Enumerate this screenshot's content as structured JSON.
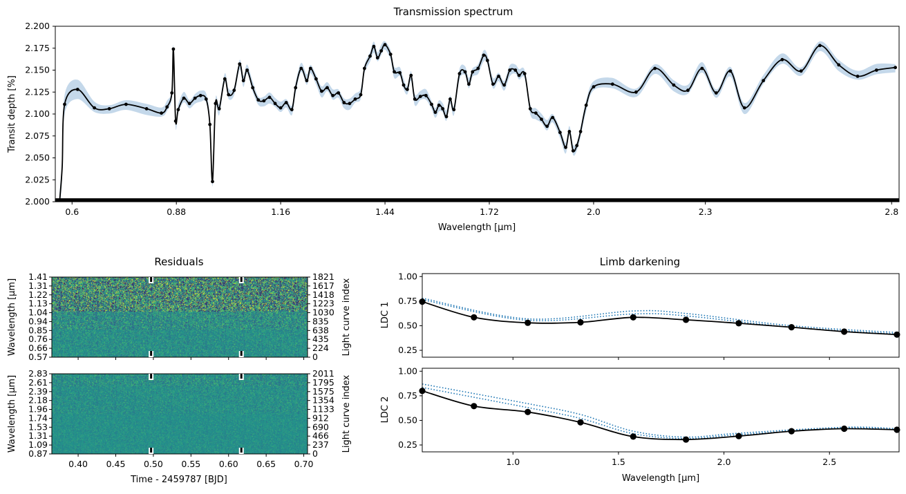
{
  "chart_data": [
    {
      "id": "transmission",
      "type": "line",
      "title": "Transmission spectrum",
      "xlabel": "Wavelength [μm]",
      "ylabel": "Transit depth [%]",
      "xlim": [
        0.555,
        2.82
      ],
      "ylim": [
        2.0,
        2.2
      ],
      "x_ticks": [
        {
          "x": 0.6,
          "label": "0.6"
        },
        {
          "x": 0.88,
          "label": "0.88"
        },
        {
          "x": 1.16,
          "label": "1.16"
        },
        {
          "x": 1.44,
          "label": "1.44"
        },
        {
          "x": 1.72,
          "label": "1.72"
        },
        {
          "x": 2.0,
          "label": "2.0"
        },
        {
          "x": 2.3,
          "label": "2.3"
        },
        {
          "x": 2.8,
          "label": "2.8"
        }
      ],
      "y_ticks": [
        "2.000",
        "2.025",
        "2.050",
        "2.075",
        "2.100",
        "2.125",
        "2.150",
        "2.175",
        "2.200"
      ],
      "fill_color": "#c4d8ea",
      "line_color": "#000000",
      "points": [
        [
          0.58,
          2.111
        ],
        [
          0.615,
          2.128
        ],
        [
          0.66,
          2.107
        ],
        [
          0.7,
          2.106
        ],
        [
          0.745,
          2.111
        ],
        [
          0.8,
          2.106
        ],
        [
          0.84,
          2.101
        ],
        [
          0.855,
          2.108
        ],
        [
          0.868,
          2.124
        ],
        [
          0.872,
          2.174
        ],
        [
          0.878,
          2.092
        ],
        [
          0.885,
          2.105
        ],
        [
          0.9,
          2.118
        ],
        [
          0.915,
          2.112
        ],
        [
          0.93,
          2.118
        ],
        [
          0.945,
          2.121
        ],
        [
          0.96,
          2.117
        ],
        [
          0.97,
          2.088
        ],
        [
          0.977,
          2.023
        ],
        [
          0.985,
          2.112
        ],
        [
          0.995,
          2.106
        ],
        [
          1.01,
          2.14
        ],
        [
          1.02,
          2.122
        ],
        [
          1.035,
          2.127
        ],
        [
          1.05,
          2.157
        ],
        [
          1.06,
          2.138
        ],
        [
          1.07,
          2.15
        ],
        [
          1.085,
          2.13
        ],
        [
          1.1,
          2.116
        ],
        [
          1.115,
          2.115
        ],
        [
          1.13,
          2.119
        ],
        [
          1.145,
          2.112
        ],
        [
          1.16,
          2.107
        ],
        [
          1.175,
          2.113
        ],
        [
          1.19,
          2.105
        ],
        [
          1.2,
          2.13
        ],
        [
          1.215,
          2.152
        ],
        [
          1.23,
          2.138
        ],
        [
          1.24,
          2.152
        ],
        [
          1.255,
          2.14
        ],
        [
          1.27,
          2.126
        ],
        [
          1.285,
          2.13
        ],
        [
          1.3,
          2.121
        ],
        [
          1.315,
          2.124
        ],
        [
          1.33,
          2.113
        ],
        [
          1.345,
          2.112
        ],
        [
          1.36,
          2.117
        ],
        [
          1.375,
          2.122
        ],
        [
          1.385,
          2.152
        ],
        [
          1.4,
          2.166
        ],
        [
          1.41,
          2.177
        ],
        [
          1.42,
          2.164
        ],
        [
          1.43,
          2.172
        ],
        [
          1.44,
          2.179
        ],
        [
          1.455,
          2.168
        ],
        [
          1.465,
          2.148
        ],
        [
          1.48,
          2.147
        ],
        [
          1.49,
          2.133
        ],
        [
          1.5,
          2.128
        ],
        [
          1.51,
          2.144
        ],
        [
          1.52,
          2.117
        ],
        [
          1.535,
          2.12
        ],
        [
          1.55,
          2.121
        ],
        [
          1.565,
          2.111
        ],
        [
          1.575,
          2.102
        ],
        [
          1.585,
          2.11
        ],
        [
          1.595,
          2.106
        ],
        [
          1.605,
          2.097
        ],
        [
          1.615,
          2.117
        ],
        [
          1.625,
          2.105
        ],
        [
          1.64,
          2.146
        ],
        [
          1.655,
          2.148
        ],
        [
          1.665,
          2.134
        ],
        [
          1.675,
          2.148
        ],
        [
          1.69,
          2.152
        ],
        [
          1.705,
          2.167
        ],
        [
          1.715,
          2.161
        ],
        [
          1.73,
          2.134
        ],
        [
          1.745,
          2.143
        ],
        [
          1.76,
          2.133
        ],
        [
          1.775,
          2.15
        ],
        [
          1.79,
          2.15
        ],
        [
          1.8,
          2.144
        ],
        [
          1.815,
          2.146
        ],
        [
          1.83,
          2.106
        ],
        [
          1.845,
          2.101
        ],
        [
          1.86,
          2.094
        ],
        [
          1.875,
          2.086
        ],
        [
          1.89,
          2.096
        ],
        [
          1.91,
          2.079
        ],
        [
          1.925,
          2.062
        ],
        [
          1.935,
          2.08
        ],
        [
          1.945,
          2.058
        ],
        [
          1.955,
          2.064
        ],
        [
          1.965,
          2.08
        ],
        [
          1.98,
          2.11
        ],
        [
          2.0,
          2.131
        ],
        [
          2.02,
          2.134
        ],
        [
          2.045,
          2.125
        ],
        [
          2.065,
          2.152
        ],
        [
          2.085,
          2.133
        ],
        [
          2.1,
          2.127
        ],
        [
          2.115,
          2.152
        ],
        [
          2.13,
          2.124
        ],
        [
          2.145,
          2.149
        ],
        [
          2.16,
          2.107
        ],
        [
          2.18,
          2.138
        ],
        [
          2.2,
          2.162
        ],
        [
          2.22,
          2.149
        ],
        [
          2.24,
          2.178
        ],
        [
          2.26,
          2.156
        ],
        [
          2.28,
          2.143
        ],
        [
          2.3,
          2.15
        ],
        [
          2.32,
          2.153
        ]
      ],
      "x_remap": [
        [
          0.555,
          0.555
        ],
        [
          2.0,
          2.0
        ],
        [
          2.32,
          2.81
        ]
      ]
    },
    {
      "id": "residuals-top",
      "type": "heatmap",
      "title": "Residuals",
      "ylabel": "Wavelength [μm]",
      "ylabel_right": "Light curve index",
      "y_ticks": [
        "0.57",
        "0.66",
        "0.76",
        "0.85",
        "0.94",
        "1.04",
        "1.13",
        "1.22",
        "1.31",
        "1.41"
      ],
      "y_ticks_right": [
        "0",
        "224",
        "435",
        "638",
        "835",
        "1030",
        "1223",
        "1418",
        "1617",
        "1821"
      ],
      "xlim": [
        0.365,
        0.705
      ],
      "markers_x": [
        0.497,
        0.617
      ],
      "colors": [
        "#440154",
        "#3b528b",
        "#21918c",
        "#5ec962",
        "#fde725"
      ]
    },
    {
      "id": "residuals-bottom",
      "type": "heatmap",
      "xlabel": "Time - 2459787 [BJD]",
      "ylabel": "Wavelength [μm]",
      "ylabel_right": "Light curve index",
      "y_ticks": [
        "0.87",
        "1.09",
        "1.31",
        "1.53",
        "1.74",
        "1.96",
        "2.18",
        "2.39",
        "2.61",
        "2.83"
      ],
      "y_ticks_right": [
        "0",
        "237",
        "466",
        "690",
        "912",
        "1133",
        "1354",
        "1575",
        "1795",
        "2011"
      ],
      "xlim": [
        0.365,
        0.705
      ],
      "x_ticks": [
        "0.40",
        "0.45",
        "0.50",
        "0.55",
        "0.60",
        "0.65",
        "0.70"
      ],
      "markers_x": [
        0.497,
        0.617
      ]
    },
    {
      "id": "ldc1",
      "type": "line",
      "title": "Limb darkening",
      "ylabel": "LDC 1",
      "xlim": [
        0.57,
        2.83
      ],
      "ylim": [
        0.18,
        1.03
      ],
      "y_ticks": [
        "0.25",
        "0.50",
        "0.75",
        "1.00"
      ],
      "points": [
        [
          0.57,
          0.745
        ],
        [
          0.815,
          0.585
        ],
        [
          1.07,
          0.53
        ],
        [
          1.32,
          0.535
        ],
        [
          1.57,
          0.585
        ],
        [
          1.82,
          0.56
        ],
        [
          2.07,
          0.525
        ],
        [
          2.32,
          0.485
        ],
        [
          2.57,
          0.44
        ],
        [
          2.82,
          0.41
        ]
      ],
      "dotted_upper": [
        [
          0.57,
          0.78
        ],
        [
          1.07,
          0.57
        ],
        [
          1.57,
          0.65
        ],
        [
          1.82,
          0.625
        ],
        [
          2.32,
          0.5
        ],
        [
          2.83,
          0.43
        ]
      ],
      "dotted_lower": [
        [
          0.57,
          0.765
        ],
        [
          1.07,
          0.555
        ],
        [
          1.57,
          0.62
        ],
        [
          1.82,
          0.6
        ],
        [
          2.32,
          0.485
        ],
        [
          2.83,
          0.415
        ]
      ]
    },
    {
      "id": "ldc2",
      "type": "line",
      "xlabel": "Wavelength [μm]",
      "ylabel": "LDC 2",
      "xlim": [
        0.57,
        2.83
      ],
      "ylim": [
        0.18,
        1.03
      ],
      "y_ticks": [
        "0.25",
        "0.50",
        "0.75",
        "1.00"
      ],
      "x_ticks": [
        "1.0",
        "1.5",
        "2.0",
        "2.5"
      ],
      "points": [
        [
          0.57,
          0.8
        ],
        [
          0.815,
          0.645
        ],
        [
          1.07,
          0.585
        ],
        [
          1.32,
          0.48
        ],
        [
          1.57,
          0.335
        ],
        [
          1.82,
          0.305
        ],
        [
          2.07,
          0.34
        ],
        [
          2.32,
          0.39
        ],
        [
          2.57,
          0.415
        ],
        [
          2.82,
          0.405
        ]
      ],
      "dotted_upper": [
        [
          0.57,
          0.87
        ],
        [
          1.07,
          0.67
        ],
        [
          1.32,
          0.56
        ],
        [
          1.57,
          0.39
        ],
        [
          1.82,
          0.33
        ],
        [
          2.07,
          0.37
        ],
        [
          2.57,
          0.43
        ],
        [
          2.83,
          0.415
        ]
      ],
      "dotted_lower": [
        [
          0.57,
          0.835
        ],
        [
          1.07,
          0.63
        ],
        [
          1.32,
          0.52
        ],
        [
          1.57,
          0.365
        ],
        [
          1.82,
          0.315
        ],
        [
          2.07,
          0.355
        ],
        [
          2.57,
          0.42
        ],
        [
          2.83,
          0.405
        ]
      ]
    }
  ],
  "colors": {
    "band": "#c4d8ea",
    "dotted": "#1f77b4",
    "line": "#000000"
  }
}
